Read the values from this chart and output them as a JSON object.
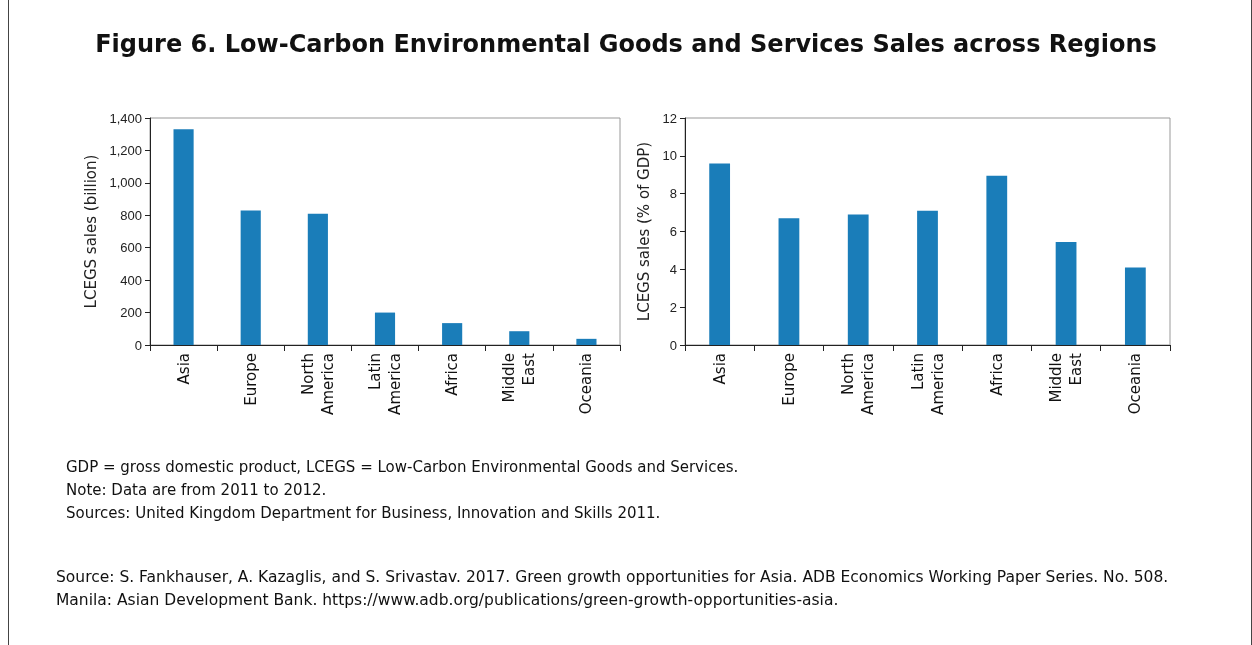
{
  "chart_data": [
    {
      "type": "bar",
      "title": "Figure 6. Low-Carbon Environmental Goods and Services Sales across Regions",
      "ylabel": "LCEGS sales (billion)",
      "categories": [
        "Asia",
        "Europe",
        "North America",
        "Latin America",
        "Africa",
        "Middle East",
        "Oceania"
      ],
      "values": [
        1330,
        830,
        810,
        200,
        135,
        85,
        38
      ],
      "color": "#1a7db9",
      "ylim": [
        0,
        1400
      ],
      "yticks": [
        {
          "value": 0,
          "label": "0"
        },
        {
          "value": 200,
          "label": "200"
        },
        {
          "value": 400,
          "label": "400"
        },
        {
          "value": 600,
          "label": "600"
        },
        {
          "value": 800,
          "label": "800"
        },
        {
          "value": 1000,
          "label": "1,000"
        },
        {
          "value": 1200,
          "label": "1,200"
        },
        {
          "value": 1400,
          "label": "1,400"
        }
      ],
      "grid": false,
      "annotations": [
        "GDP = gross domestic product, LCEGS = Low-Carbon Environmental Goods and Services.",
        "Note: Data are from 2011 to 2012.",
        "Sources: United Kingdom Department for Business, Innovation and Skills 2011.",
        "Source: S. Fankhauser, A. Kazaglis, and S. Srivastav. 2017. Green growth opportunities for Asia. ADB Economics Working Paper Series. No. 508. Manila: Asian Development Bank. https://www.adb.org/publications/green-growth-opportunities-asia."
      ]
    },
    {
      "type": "bar",
      "ylabel": "LCEGS sales (% of GDP)",
      "categories": [
        "Asia",
        "Europe",
        "North America",
        "Latin America",
        "Africa",
        "Middle East",
        "Oceania"
      ],
      "values": [
        9.6,
        6.7,
        6.9,
        7.1,
        8.95,
        5.45,
        4.1
      ],
      "color": "#1a7db9",
      "ylim": [
        0,
        12
      ],
      "yticks": [
        0,
        2,
        4,
        6,
        8,
        10,
        12
      ],
      "grid": false
    }
  ]
}
